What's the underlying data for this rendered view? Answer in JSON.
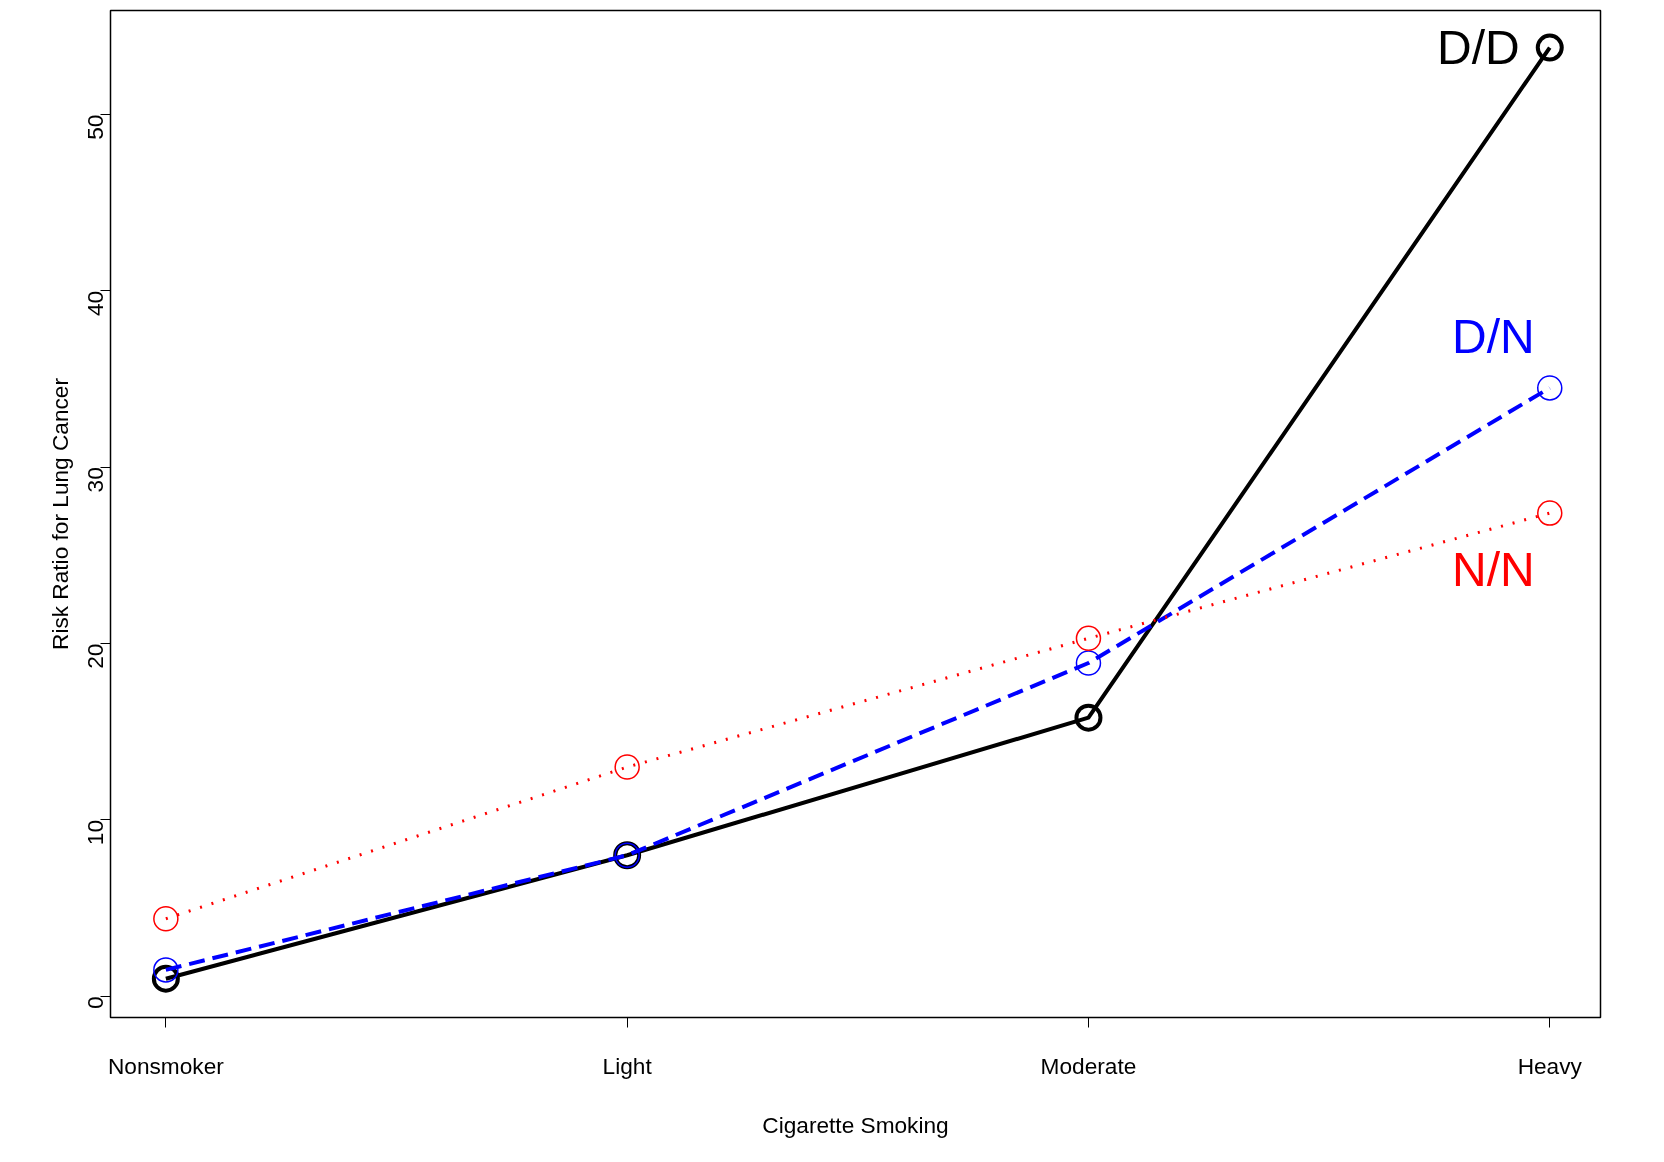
{
  "chart_data": {
    "type": "line",
    "xlabel": "Cigarette Smoking",
    "ylabel": "Risk Ratio for Lung Cancer",
    "categories": [
      "Nonsmoker",
      "Light",
      "Moderate",
      "Heavy"
    ],
    "ylim": [
      -1.2,
      55.9
    ],
    "yticks": [
      0,
      10,
      20,
      30,
      40,
      50
    ],
    "grid": false,
    "marker": "circle",
    "series": [
      {
        "name": "D/D",
        "color": "#000000",
        "line_style": "solid",
        "values": [
          1.0,
          8.0,
          15.8,
          53.8
        ]
      },
      {
        "name": "D/N",
        "color": "#0000ff",
        "line_style": "dashed",
        "values": [
          1.5,
          8.0,
          18.9,
          34.5
        ]
      },
      {
        "name": "N/N",
        "color": "#ff0000",
        "line_style": "dotted",
        "values": [
          4.4,
          13.0,
          20.3,
          27.4
        ]
      }
    ]
  }
}
